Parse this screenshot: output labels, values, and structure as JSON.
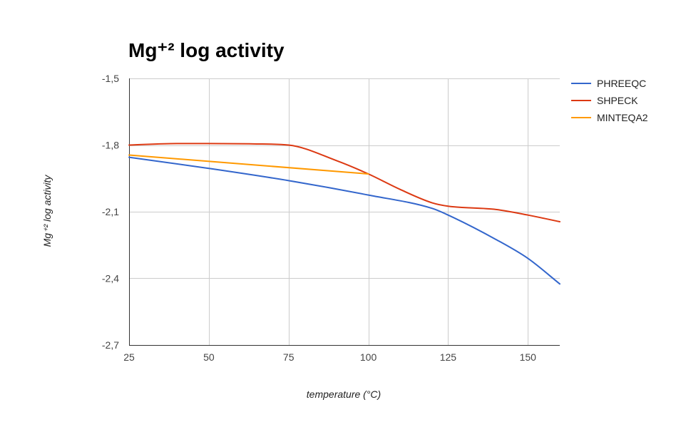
{
  "chart_data": {
    "type": "line",
    "title": "Mg⁺² log activity",
    "xlabel": "temperature (°C)",
    "ylabel": "Mg⁺² log activity",
    "xlim": [
      25,
      160
    ],
    "ylim": [
      -2.7,
      -1.5
    ],
    "x_ticks": [
      25,
      50,
      75,
      100,
      125,
      150
    ],
    "x_tick_labels": [
      "25",
      "50",
      "75",
      "100",
      "125",
      "150"
    ],
    "y_ticks": [
      -1.5,
      -1.8,
      -2.1,
      -2.4,
      -2.7
    ],
    "y_tick_labels": [
      "-1,5",
      "-1,8",
      "-2,1",
      "-2,4",
      "-2,7"
    ],
    "grid": true,
    "legend_position": "right",
    "series": [
      {
        "name": "PHREEQC",
        "color": "#3366cc",
        "x": [
          25,
          50,
          75,
          100,
          120,
          125,
          140,
          150,
          160
        ],
        "y": [
          -1.855,
          -1.905,
          -1.96,
          -2.025,
          -2.085,
          -2.115,
          -2.225,
          -2.31,
          -2.425
        ]
      },
      {
        "name": "SHPECK",
        "color": "#dc3912",
        "x": [
          25,
          40,
          50,
          65,
          75,
          90,
          100,
          110,
          120,
          125,
          140,
          150,
          160
        ],
        "y": [
          -1.8,
          -1.793,
          -1.793,
          -1.795,
          -1.8,
          -1.87,
          -1.93,
          -2.0,
          -2.06,
          -2.075,
          -2.09,
          -2.115,
          -2.145
        ]
      },
      {
        "name": "MINTEQA2",
        "color": "#ff9900",
        "x": [
          25,
          100
        ],
        "y": [
          -1.845,
          -1.93
        ]
      }
    ]
  }
}
